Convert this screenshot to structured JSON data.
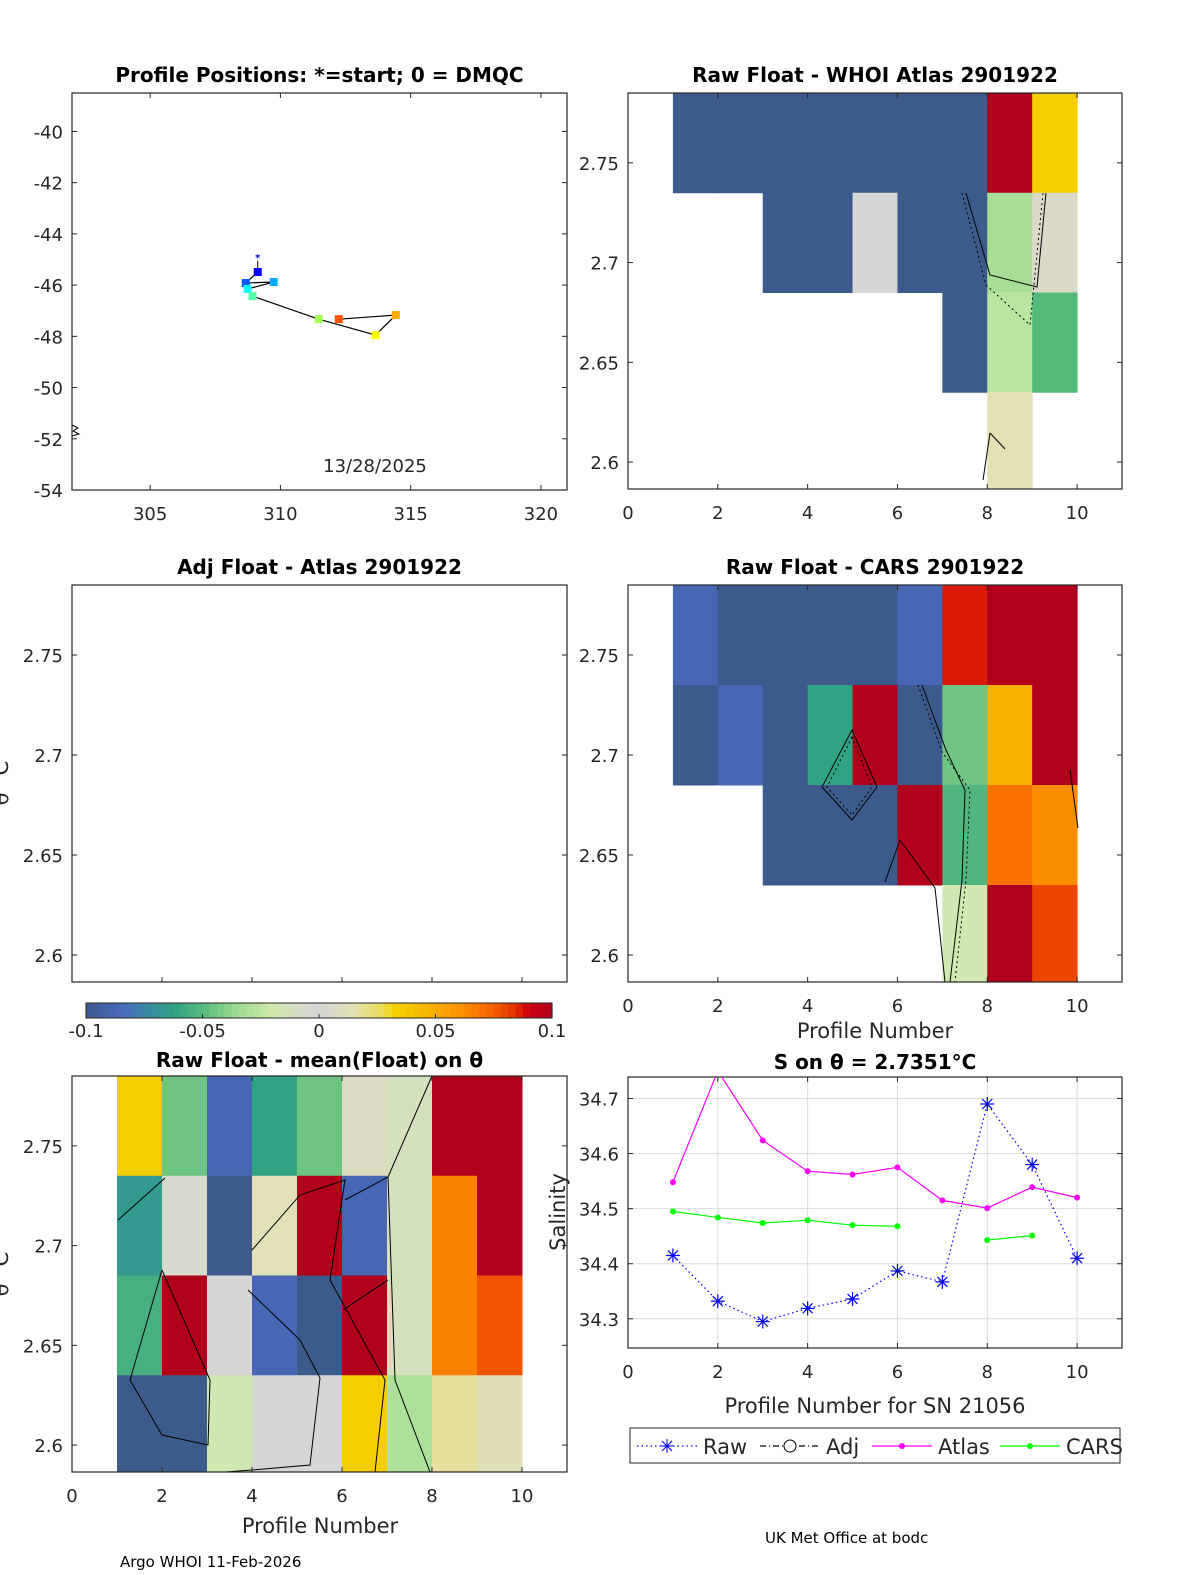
{
  "footer": {
    "left": "Argo WHOI 11-Feb-2026",
    "right": "UK Met Office at bodc"
  },
  "colormap": {
    "stops": [
      [
        -0.1,
        "#3d5a8c"
      ],
      [
        -0.085,
        "#4a69bd"
      ],
      [
        -0.075,
        "#3a86a8"
      ],
      [
        -0.062,
        "#2fa383"
      ],
      [
        -0.05,
        "#56ba7c"
      ],
      [
        -0.035,
        "#9fdb91"
      ],
      [
        -0.02,
        "#cfeaac"
      ],
      [
        -0.008,
        "#d6dcc8"
      ],
      [
        0,
        "#d6d6d6"
      ],
      [
        0.015,
        "#e3e1b3"
      ],
      [
        0.028,
        "#ecdc50"
      ],
      [
        0.032,
        "#f3d400"
      ],
      [
        0.045,
        "#f7b800"
      ],
      [
        0.06,
        "#fb9300"
      ],
      [
        0.075,
        "#f76000"
      ],
      [
        0.085,
        "#e02a00"
      ],
      [
        0.09,
        "#d00012"
      ],
      [
        0.1,
        "#b0001c"
      ]
    ],
    "ticks": [
      "-0.1",
      "-0.05",
      "0",
      "0.05",
      "0.1"
    ],
    "tick_values": [
      -0.1,
      -0.05,
      0,
      0.05,
      0.1
    ],
    "range": [
      -0.1,
      0.1
    ]
  },
  "chart_data": [
    {
      "id": "map",
      "type": "scatter",
      "title": "Profile Positions: *=start; 0 = DMQC",
      "annotation": "13/28/2025",
      "xlim": [
        302,
        321
      ],
      "ylim": [
        -54,
        -38.5
      ],
      "xticks": [
        305,
        310,
        315,
        320
      ],
      "yticks": [
        -54,
        -52,
        -50,
        -48,
        -46,
        -44,
        -42,
        -40
      ],
      "lon": [
        309.13,
        308.67,
        309.74,
        308.74,
        308.93,
        311.47,
        313.65,
        314.43,
        312.24
      ],
      "lat": [
        -45.49,
        -45.92,
        -45.88,
        -46.15,
        -46.43,
        -47.33,
        -47.95,
        -47.17,
        -47.33
      ],
      "colors": [
        "#0000ff",
        "#0055ff",
        "#00aaff",
        "#00ffff",
        "#55ffaa",
        "#aaff55",
        "#ffff00",
        "#ffaa00",
        "#ff5500"
      ],
      "start": [
        309.13,
        -44.9
      ]
    },
    {
      "id": "whoi",
      "type": "heatmap",
      "title": "Raw Float - WHOI Atlas  2901922",
      "xlim": [
        0,
        11
      ],
      "ylim": [
        2.5865,
        2.785
      ],
      "xticks": [
        0,
        2,
        4,
        6,
        8,
        10
      ],
      "yticks": [
        "2.6",
        "2.65",
        "2.7",
        "2.75"
      ],
      "col_edges": [
        1,
        2,
        3,
        4,
        5,
        6,
        7,
        8,
        9,
        10
      ],
      "row_edges": [
        2.785,
        2.735,
        2.685,
        2.635,
        2.585
      ],
      "values": [
        [
          -0.1,
          -0.1,
          -0.1,
          -0.1,
          -0.1,
          -0.1,
          -0.1,
          0.1,
          0.035
        ],
        [
          null,
          null,
          -0.1,
          -0.1,
          0,
          -0.1,
          -0.1,
          -0.032,
          0.006
        ],
        [
          null,
          null,
          null,
          null,
          null,
          null,
          -0.1,
          -0.026,
          -0.05
        ],
        [
          null,
          null,
          null,
          null,
          null,
          null,
          null,
          0.015,
          null
        ]
      ]
    },
    {
      "id": "adj",
      "type": "heatmap",
      "title": "Adj Float - Atlas  2901922",
      "ylabel": "θ °C",
      "xlim": [
        0,
        11
      ],
      "ylim": [
        2.5865,
        2.785
      ],
      "xticks": [],
      "yticks": [
        "2.6",
        "2.65",
        "2.7",
        "2.75"
      ],
      "col_edges": [],
      "row_edges": [],
      "values": []
    },
    {
      "id": "cars",
      "type": "heatmap",
      "title": "Raw Float - CARS  2901922",
      "xlabel": "Profile Number",
      "xlim": [
        0,
        11
      ],
      "ylim": [
        2.5865,
        2.785
      ],
      "xticks": [
        0,
        2,
        4,
        6,
        8,
        10
      ],
      "yticks": [
        "2.6",
        "2.65",
        "2.7",
        "2.75"
      ],
      "col_edges": [
        1,
        2,
        3,
        4,
        5,
        6,
        7,
        8,
        9,
        10
      ],
      "row_edges": [
        2.785,
        2.735,
        2.685,
        2.635,
        2.585
      ],
      "values": [
        [
          -0.088,
          -0.1,
          -0.1,
          -0.1,
          -0.1,
          -0.088,
          0.087,
          0.1,
          0.1
        ],
        [
          -0.1,
          -0.088,
          -0.1,
          -0.062,
          0.1,
          -0.1,
          -0.045,
          0.048,
          0.1
        ],
        [
          null,
          null,
          -0.1,
          -0.1,
          -0.1,
          0.1,
          -0.052,
          0.07,
          0.062
        ],
        [
          null,
          null,
          null,
          null,
          null,
          null,
          -0.018,
          0.1,
          0.08
        ]
      ]
    },
    {
      "id": "mean",
      "type": "heatmap",
      "title": "Raw Float - mean(Float) on θ",
      "xlabel": "Profile Number",
      "ylabel": "θ °C",
      "xlim": [
        0,
        11
      ],
      "ylim": [
        2.5865,
        2.785
      ],
      "xticks": [
        0,
        2,
        4,
        6,
        8,
        10
      ],
      "yticks": [
        "2.6",
        "2.65",
        "2.7",
        "2.75"
      ],
      "col_edges": [
        1,
        2,
        3,
        4,
        5,
        6,
        7,
        8,
        9,
        10
      ],
      "row_edges": [
        2.785,
        2.735,
        2.685,
        2.635,
        2.585
      ],
      "values": [
        [
          0.035,
          -0.045,
          -0.088,
          -0.062,
          -0.045,
          0.008,
          -0.012,
          0.1,
          0.1
        ],
        [
          -0.066,
          -0.005,
          -0.1,
          0.013,
          0.1,
          -0.088,
          -0.012,
          0.065,
          0.1
        ],
        [
          -0.055,
          0.1,
          0,
          -0.088,
          -0.1,
          0.1,
          -0.012,
          0.065,
          0.077
        ],
        [
          -0.1,
          -0.1,
          -0.018,
          0,
          0,
          0.035,
          -0.03,
          0.018,
          0.012
        ]
      ]
    },
    {
      "id": "sal",
      "type": "line",
      "title": "S on θ = 2.7351°C",
      "xlabel": "Profile Number for SN 21056",
      "ylabel": "Salinity",
      "xlim": [
        0,
        11
      ],
      "ylim": [
        34.247,
        34.739
      ],
      "grid": true,
      "xticks": [
        0,
        2,
        4,
        6,
        8,
        10
      ],
      "yticks": [
        "34.3",
        "34.4",
        "34.5",
        "34.6",
        "34.7"
      ],
      "x": [
        1,
        2,
        3,
        4,
        5,
        6,
        7,
        8,
        9,
        10
      ],
      "series": [
        {
          "name": "Raw",
          "color": "#0000ff",
          "values": [
            34.415,
            34.332,
            34.295,
            34.319,
            34.336,
            34.387,
            34.367,
            34.69,
            34.58,
            34.41
          ]
        },
        {
          "name": "Adj",
          "color": "#000000",
          "values": [
            null,
            null,
            null,
            null,
            null,
            null,
            null,
            null,
            null,
            null
          ]
        },
        {
          "name": "Atlas",
          "color": "#ff00ff",
          "values": [
            34.548,
            34.75,
            34.624,
            34.568,
            34.562,
            34.575,
            34.515,
            34.501,
            34.539,
            34.52
          ]
        },
        {
          "name": "CARS",
          "color": "#00ff00",
          "values": [
            34.495,
            34.484,
            34.474,
            34.479,
            34.47,
            34.468,
            null,
            34.443,
            34.451,
            null
          ]
        }
      ],
      "legend": "bottom"
    }
  ]
}
